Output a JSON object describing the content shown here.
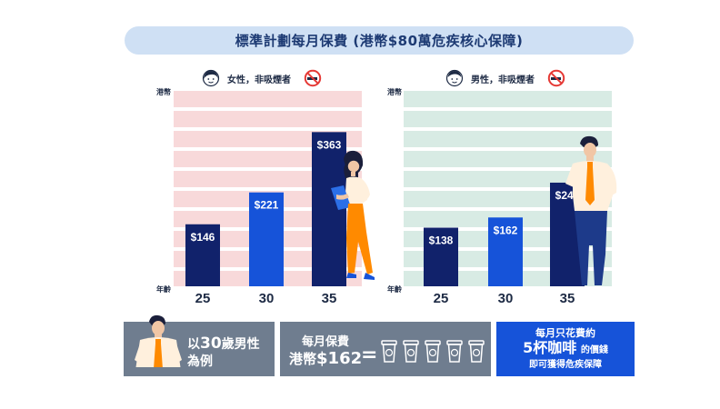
{
  "title": "標準計劃每月保費 (港幣$80萬危疾核心保障)",
  "female_panel": {
    "label": "女性，非吸煙者"
  },
  "male_panel": {
    "label": "男性，非吸煙者"
  },
  "y_axis_label": "港幣",
  "x_axis_label": "年齡",
  "colors": {
    "female_bg": "#f8d9da",
    "male_bg": "#d8ebe4",
    "bar_dark": "#11226b",
    "bar_blue": "#1653d9",
    "title_bg": "#cfe0f4",
    "info_gray": "#6f7d8f",
    "info_blue": "#1653d9"
  },
  "chart_data": [
    {
      "type": "bar",
      "title": "女性，非吸煙者",
      "categories": [
        "25",
        "30",
        "35"
      ],
      "values": [
        146,
        221,
        363
      ],
      "value_labels": [
        "$146",
        "$221",
        "$363"
      ],
      "xlabel": "年齡",
      "ylabel": "港幣",
      "ylim": [
        0,
        460
      ]
    },
    {
      "type": "bar",
      "title": "男性，非吸煙者",
      "categories": [
        "25",
        "30",
        "35"
      ],
      "values": [
        138,
        162,
        244
      ],
      "value_labels": [
        "$138",
        "$162",
        "$244"
      ],
      "xlabel": "年齡",
      "ylabel": "港幣",
      "ylim": [
        0,
        460
      ]
    }
  ],
  "info": {
    "box1_line1_pre": "以",
    "box1_line1_num": "30",
    "box1_line1_post": "歲男性",
    "box1_line2": "為例",
    "box2_line1": "每月保費",
    "box2_line2_pre": "港幣",
    "box2_line2_amt": "$162",
    "box2_equals": "=",
    "box3_line1": "每月只花費約",
    "box3_line2_big": "5杯咖啡",
    "box3_line2_small": "的價錢",
    "box3_line3": "即可獲得危疾保障"
  }
}
